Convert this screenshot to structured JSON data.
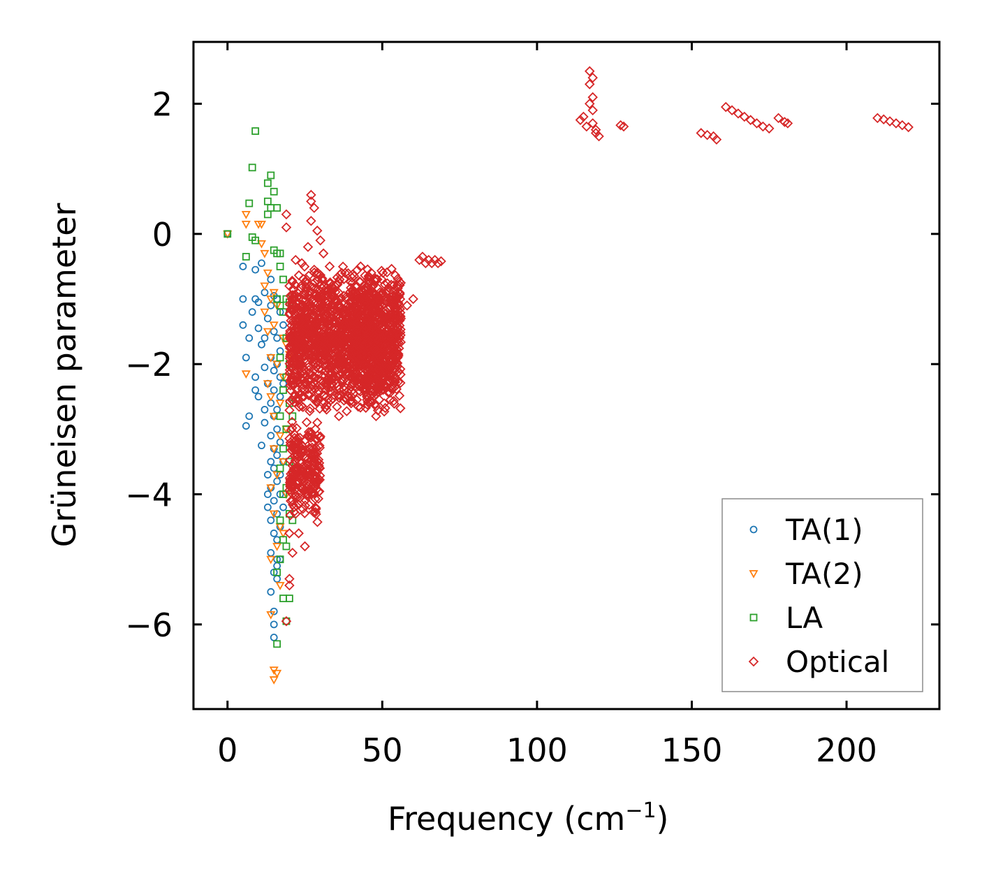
{
  "chart_data": {
    "type": "scatter",
    "title": "",
    "xlabel": "Frequency (cm",
    "xlabel_sup": "−1",
    "xlabel_close": ")",
    "ylabel": "Grüneisen parameter",
    "xlim": [
      -11,
      230
    ],
    "ylim": [
      -7.3,
      2.95
    ],
    "xticks": [
      0,
      50,
      100,
      150,
      200
    ],
    "yticks": [
      -6,
      -4,
      -2,
      0,
      2
    ],
    "xtick_labels": [
      "0",
      "50",
      "100",
      "150",
      "200"
    ],
    "ytick_labels": [
      "−6",
      "−4",
      "−2",
      "0",
      "2"
    ],
    "legend_position": "bottom-right",
    "series": [
      {
        "name": "TA(1)",
        "marker": "circle",
        "color": "#1f77b4",
        "points": [
          [
            0,
            0
          ],
          [
            5,
            -0.5
          ],
          [
            5,
            -1.0
          ],
          [
            5,
            -1.4
          ],
          [
            6,
            -1.9
          ],
          [
            6,
            -2.95
          ],
          [
            7,
            -1.6
          ],
          [
            7,
            -2.8
          ],
          [
            8,
            -1.2
          ],
          [
            9,
            -0.55
          ],
          [
            9,
            -1.0
          ],
          [
            9,
            -2.2
          ],
          [
            9,
            -2.4
          ],
          [
            10,
            -1.05
          ],
          [
            10,
            -1.45
          ],
          [
            10,
            -2.5
          ],
          [
            11,
            -0.45
          ],
          [
            11,
            -1.7
          ],
          [
            11,
            -3.25
          ],
          [
            12,
            -0.9
          ],
          [
            12,
            -1.6
          ],
          [
            12,
            -2.05
          ],
          [
            12,
            -2.7
          ],
          [
            12,
            -2.9
          ],
          [
            13,
            -1.3
          ],
          [
            13,
            -2.3
          ],
          [
            13,
            -3.7
          ],
          [
            13,
            -4.0
          ],
          [
            13,
            -4.2
          ],
          [
            14,
            -0.7
          ],
          [
            14,
            -1.1
          ],
          [
            14,
            -1.9
          ],
          [
            14,
            -2.6
          ],
          [
            14,
            -3.1
          ],
          [
            14,
            -3.5
          ],
          [
            14,
            -3.9
          ],
          [
            14,
            -4.4
          ],
          [
            14,
            -4.9
          ],
          [
            14,
            -5.5
          ],
          [
            15,
            -0.95
          ],
          [
            15,
            -1.5
          ],
          [
            15,
            -2.1
          ],
          [
            15,
            -2.4
          ],
          [
            15,
            -2.8
          ],
          [
            15,
            -3.3
          ],
          [
            15,
            -3.6
          ],
          [
            15,
            -4.1
          ],
          [
            15,
            -4.6
          ],
          [
            15,
            -5.2
          ],
          [
            15,
            -5.8
          ],
          [
            15,
            -6.0
          ],
          [
            15,
            -6.2
          ],
          [
            16,
            -1.0
          ],
          [
            16,
            -1.6
          ],
          [
            16,
            -2.0
          ],
          [
            16,
            -2.7
          ],
          [
            16,
            -3.0
          ],
          [
            16,
            -3.4
          ],
          [
            16,
            -3.8
          ],
          [
            16,
            -4.3
          ],
          [
            16,
            -4.7
          ],
          [
            16,
            -5.0
          ],
          [
            16,
            -5.3
          ],
          [
            16,
            -5.1
          ],
          [
            17,
            -1.2
          ],
          [
            17,
            -1.8
          ],
          [
            17,
            -2.2
          ],
          [
            17,
            -2.5
          ],
          [
            17,
            -3.2
          ],
          [
            17,
            -3.7
          ],
          [
            17,
            -4.0
          ],
          [
            17,
            -4.5
          ],
          [
            17,
            -5.0
          ],
          [
            18,
            -1.4
          ],
          [
            18,
            -2.3
          ],
          [
            18,
            -3.5
          ],
          [
            18,
            -4.2
          ]
        ]
      },
      {
        "name": "TA(2)",
        "marker": "triangle-down",
        "color": "#ff7f0e",
        "points": [
          [
            0,
            0
          ],
          [
            6,
            0.3
          ],
          [
            6,
            0.15
          ],
          [
            6,
            -2.15
          ],
          [
            10,
            0.15
          ],
          [
            11,
            0.15
          ],
          [
            11,
            -0.15
          ],
          [
            12,
            -0.3
          ],
          [
            12,
            -0.8
          ],
          [
            12,
            -1.2
          ],
          [
            13,
            -1.5
          ],
          [
            13,
            -2.3
          ],
          [
            13,
            -0.6
          ],
          [
            14,
            -1.0
          ],
          [
            14,
            -1.9
          ],
          [
            14,
            -2.5
          ],
          [
            14,
            -3.9
          ],
          [
            14,
            -5.0
          ],
          [
            14,
            -5.85
          ],
          [
            15,
            -6.7
          ],
          [
            15,
            -6.85
          ],
          [
            15,
            -4.3
          ],
          [
            15,
            -3.3
          ],
          [
            15,
            -2.8
          ],
          [
            15,
            -1.4
          ],
          [
            15,
            -0.9
          ],
          [
            16,
            -6.75
          ],
          [
            16,
            -4.8
          ],
          [
            16,
            -3.7
          ],
          [
            16,
            -2.0
          ],
          [
            16,
            -1.1
          ],
          [
            17,
            -2.6
          ],
          [
            17,
            -3.1
          ],
          [
            17,
            -4.5
          ],
          [
            17,
            -5.4
          ],
          [
            18,
            -1.6
          ],
          [
            18,
            -2.2
          ],
          [
            18,
            -3.5
          ],
          [
            18,
            -4.6
          ],
          [
            19,
            -1.7
          ],
          [
            19,
            -3.0
          ],
          [
            19,
            -4.0
          ],
          [
            20,
            -1.85
          ]
        ]
      },
      {
        "name": "LA",
        "marker": "square",
        "color": "#2ca02c",
        "points": [
          [
            0,
            0
          ],
          [
            6,
            -0.35
          ],
          [
            7,
            0.47
          ],
          [
            8,
            1.02
          ],
          [
            8,
            -0.05
          ],
          [
            9,
            1.58
          ],
          [
            9,
            -0.1
          ],
          [
            13,
            0.78
          ],
          [
            13,
            0.5
          ],
          [
            13,
            0.3
          ],
          [
            14,
            0.9
          ],
          [
            14,
            0.4
          ],
          [
            15,
            0.65
          ],
          [
            15,
            -0.25
          ],
          [
            16,
            0.4
          ],
          [
            16,
            -0.3
          ],
          [
            16,
            -1.0
          ],
          [
            16,
            -5.2
          ],
          [
            16,
            -6.3
          ],
          [
            17,
            -0.3
          ],
          [
            17,
            -0.5
          ],
          [
            17,
            -1.1
          ],
          [
            17,
            -1.9
          ],
          [
            17,
            -2.8
          ],
          [
            17,
            -3.6
          ],
          [
            17,
            -4.4
          ],
          [
            17,
            -5.0
          ],
          [
            18,
            -0.7
          ],
          [
            18,
            -1.2
          ],
          [
            18,
            -2.4
          ],
          [
            18,
            -3.3
          ],
          [
            18,
            -4.0
          ],
          [
            18,
            -4.7
          ],
          [
            18,
            -5.6
          ],
          [
            19,
            -1.0
          ],
          [
            19,
            -1.6
          ],
          [
            19,
            -2.2
          ],
          [
            19,
            -3.0
          ],
          [
            19,
            -3.9
          ],
          [
            19,
            -4.8
          ],
          [
            19,
            -5.95
          ],
          [
            20,
            -1.05
          ],
          [
            20,
            -2.0
          ],
          [
            20,
            -2.6
          ],
          [
            20,
            -3.5
          ],
          [
            20,
            -4.3
          ],
          [
            20,
            -5.6
          ],
          [
            21,
            -2.8
          ],
          [
            21,
            -3.7
          ],
          [
            21,
            -4.4
          ]
        ]
      },
      {
        "name": "Optical",
        "marker": "diamond",
        "color": "#d62728",
        "points": [
          [
            19,
            0.3
          ],
          [
            19,
            0.1
          ],
          [
            19,
            -5.95
          ],
          [
            20,
            -0.8
          ],
          [
            20,
            -4.6
          ],
          [
            20,
            -5.3
          ],
          [
            20,
            -5.4
          ],
          [
            21,
            -4.9
          ],
          [
            22,
            -0.4
          ],
          [
            22,
            -4.3
          ],
          [
            23,
            -4.0
          ],
          [
            23,
            -4.6
          ],
          [
            24,
            -0.45
          ],
          [
            24,
            -3.5
          ],
          [
            25,
            -4.8
          ],
          [
            26,
            -0.2
          ],
          [
            26,
            -3.1
          ],
          [
            27,
            0.6
          ],
          [
            27,
            0.5
          ],
          [
            27,
            0.2
          ],
          [
            28,
            0.4
          ],
          [
            28,
            -0.55
          ],
          [
            29,
            0.05
          ],
          [
            29,
            -2.9
          ],
          [
            30,
            -0.1
          ],
          [
            31,
            -0.3
          ],
          [
            32,
            -2.7
          ],
          [
            33,
            -0.5
          ],
          [
            36,
            -2.8
          ],
          [
            38,
            -0.6
          ],
          [
            40,
            -2.5
          ],
          [
            43,
            -0.5
          ],
          [
            45,
            -2.5
          ],
          [
            47,
            -0.8
          ],
          [
            48,
            -2.65
          ],
          [
            48,
            -2.8
          ],
          [
            49,
            -2.3
          ],
          [
            50,
            -0.9
          ],
          [
            52,
            -1.0
          ],
          [
            54,
            -1.15
          ],
          [
            56,
            -1.3
          ],
          [
            58,
            -1.1
          ],
          [
            60,
            -1.0
          ],
          [
            62,
            -0.4
          ],
          [
            63,
            -0.35
          ],
          [
            64,
            -0.45
          ],
          [
            65,
            -0.4
          ],
          [
            66,
            -0.45
          ],
          [
            67,
            -0.4
          ],
          [
            68,
            -0.45
          ],
          [
            69,
            -0.42
          ],
          [
            114,
            1.75
          ],
          [
            115,
            1.8
          ],
          [
            116,
            1.65
          ],
          [
            117,
            2.5
          ],
          [
            117,
            2.3
          ],
          [
            117,
            2.0
          ],
          [
            118,
            2.4
          ],
          [
            118,
            2.1
          ],
          [
            118,
            1.9
          ],
          [
            118,
            1.7
          ],
          [
            119,
            1.6
          ],
          [
            119,
            1.55
          ],
          [
            120,
            1.5
          ],
          [
            127,
            1.67
          ],
          [
            128,
            1.65
          ],
          [
            153,
            1.55
          ],
          [
            155,
            1.52
          ],
          [
            157,
            1.5
          ],
          [
            158,
            1.45
          ],
          [
            161,
            1.95
          ],
          [
            163,
            1.9
          ],
          [
            165,
            1.85
          ],
          [
            167,
            1.8
          ],
          [
            169,
            1.75
          ],
          [
            171,
            1.7
          ],
          [
            173,
            1.65
          ],
          [
            175,
            1.62
          ],
          [
            178,
            1.78
          ],
          [
            180,
            1.72
          ],
          [
            181,
            1.7
          ],
          [
            210,
            1.78
          ],
          [
            212,
            1.76
          ],
          [
            214,
            1.73
          ],
          [
            216,
            1.7
          ],
          [
            218,
            1.67
          ],
          [
            220,
            1.64
          ]
        ],
        "clusters": [
          {
            "x_range": [
              20,
              56
            ],
            "y_range": [
              -2.8,
              -0.45
            ]
          },
          {
            "x_range": [
              20,
              30
            ],
            "y_range": [
              -4.5,
              -2.8
            ]
          },
          {
            "x_range": [
              40,
              50
            ],
            "y_range": [
              -2.5,
              -0.7
            ]
          }
        ]
      }
    ]
  }
}
